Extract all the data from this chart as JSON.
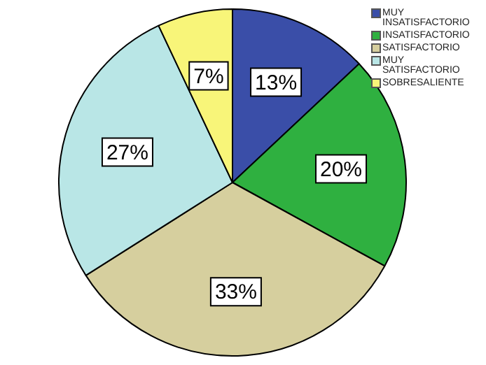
{
  "chart_data": {
    "type": "pie",
    "categories": [
      "MUY INSATISFACTORIO",
      "INSATISFACTORIO",
      "SATISFACTORIO",
      "MUY SATISFACTORIO",
      "SOBRESALIENTE"
    ],
    "values": [
      13,
      20,
      33,
      27,
      7
    ],
    "colors": [
      "#3a4ea8",
      "#2fb040",
      "#d6cf9e",
      "#b9e6e6",
      "#f8f579"
    ],
    "value_labels": [
      "13%",
      "20%",
      "33%",
      "27%",
      "7%"
    ],
    "legend": "top right"
  }
}
